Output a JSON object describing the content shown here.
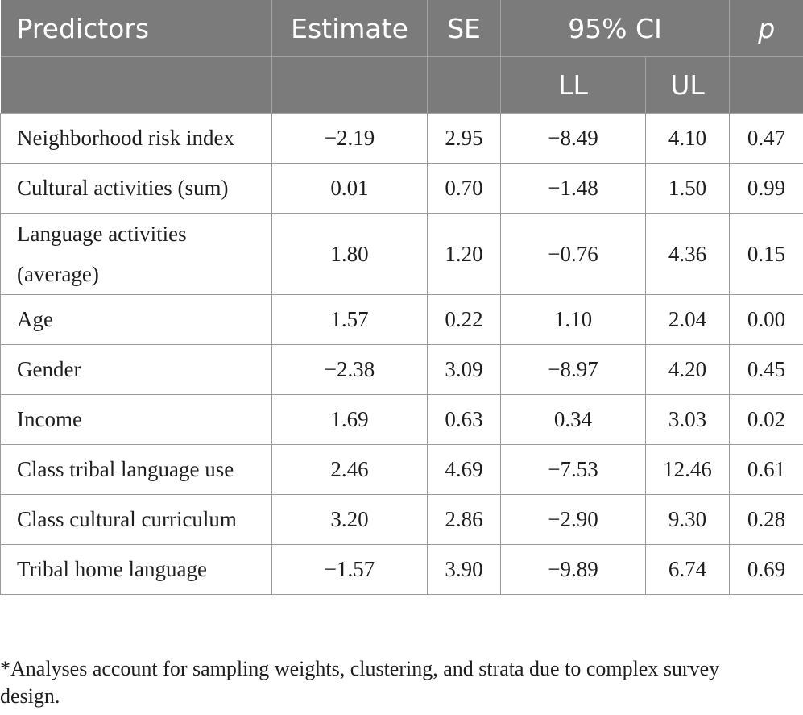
{
  "table": {
    "headers": {
      "predictors": "Predictors",
      "estimate": "Estimate",
      "se": "SE",
      "ci": "95% CI",
      "p": "p",
      "ll": "LL",
      "ul": "UL"
    },
    "rows": [
      {
        "predictor": "Neighborhood risk index",
        "estimate": "−2.19",
        "se": "2.95",
        "ll": "−8.49",
        "ul": "4.10",
        "p": "0.47"
      },
      {
        "predictor": "Cultural activities (sum)",
        "estimate": "0.01",
        "se": "0.70",
        "ll": "−1.48",
        "ul": "1.50",
        "p": "0.99"
      },
      {
        "predictor_line1": "Language activities",
        "predictor_line2": "(average)",
        "estimate": "1.80",
        "se": "1.20",
        "ll": "−0.76",
        "ul": "4.36",
        "p": "0.15"
      },
      {
        "predictor": "Age",
        "estimate": "1.57",
        "se": "0.22",
        "ll": "1.10",
        "ul": "2.04",
        "p": "0.00"
      },
      {
        "predictor": "Gender",
        "estimate": "−2.38",
        "se": "3.09",
        "ll": "−8.97",
        "ul": "4.20",
        "p": "0.45"
      },
      {
        "predictor": "Income",
        "estimate": "1.69",
        "se": "0.63",
        "ll": "0.34",
        "ul": "3.03",
        "p": "0.02"
      },
      {
        "predictor": "Class tribal language use",
        "estimate": "2.46",
        "se": "4.69",
        "ll": "−7.53",
        "ul": "12.46",
        "p": "0.61"
      },
      {
        "predictor": "Class cultural curriculum",
        "estimate": "3.20",
        "se": "2.86",
        "ll": "−2.90",
        "ul": "9.30",
        "p": "0.28"
      },
      {
        "predictor": "Tribal home language",
        "estimate": "−1.57",
        "se": "3.90",
        "ll": "−9.89",
        "ul": "6.74",
        "p": "0.69"
      }
    ]
  },
  "footnote": "*Analyses account for sampling weights, clustering, and strata due to complex survey design.",
  "colors": {
    "header_bg": "#7a7b7a",
    "header_text": "#ffffff",
    "grid": "#9a9a9a",
    "body_text": "#1e1e1e"
  }
}
